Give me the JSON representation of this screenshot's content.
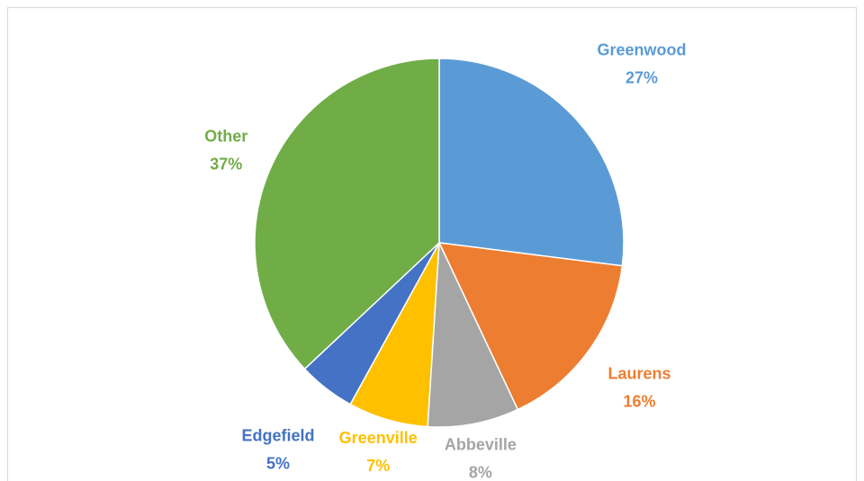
{
  "chart_data": {
    "type": "pie",
    "categories": [
      "Greenwood",
      "Laurens",
      "Abbeville",
      "Greenville",
      "Edgefield",
      "Other"
    ],
    "values": [
      27,
      16,
      8,
      7,
      5,
      37
    ],
    "value_labels": [
      "27%",
      "16%",
      "8%",
      "7%",
      "5%",
      "37%"
    ],
    "colors": [
      "#5b9bd5",
      "#ed7d31",
      "#a5a5a5",
      "#ffc000",
      "#4472c4",
      "#70ad47"
    ]
  }
}
